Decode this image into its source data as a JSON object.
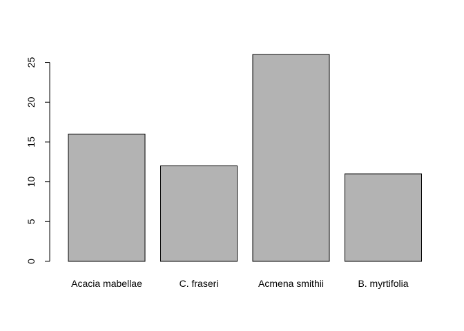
{
  "chart_data": {
    "type": "bar",
    "categories": [
      "Acacia mabellae",
      "C. fraseri",
      "Acmena smithii",
      "B. myrtifolia"
    ],
    "values": [
      16,
      12,
      26,
      11
    ],
    "ylim": [
      0,
      26
    ],
    "yticks": [
      0,
      5,
      10,
      15,
      20,
      25
    ],
    "grid": false,
    "colors": {
      "bar_fill": "#b3b3b3",
      "bar_stroke": "#000000",
      "axis": "#000000"
    }
  }
}
